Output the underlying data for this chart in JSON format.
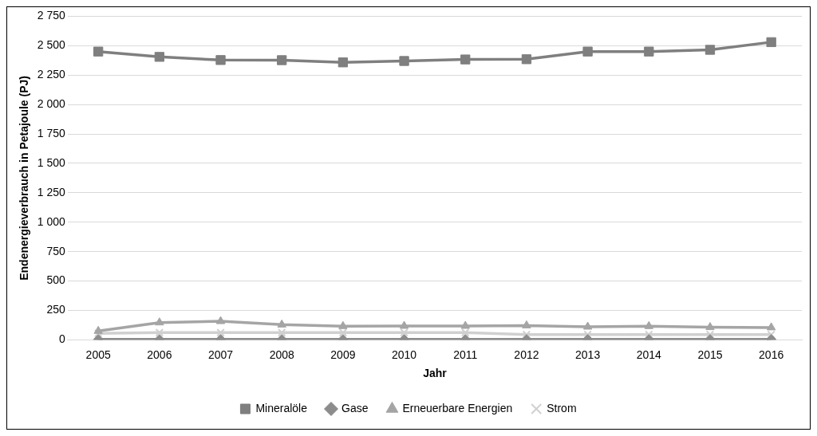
{
  "chart_data": {
    "type": "line",
    "xlabel": "Jahr",
    "ylabel": "Endenergieverbrauch in Petajoule (PJ)",
    "categories": [
      "2005",
      "2006",
      "2007",
      "2008",
      "2009",
      "2010",
      "2011",
      "2012",
      "2013",
      "2014",
      "2015",
      "2016"
    ],
    "series": [
      {
        "name": "Mineralöle",
        "color": "#7f7f7f",
        "marker": "square",
        "values": [
          2450,
          2405,
          2378,
          2377,
          2358,
          2370,
          2383,
          2385,
          2450,
          2450,
          2465,
          2530
        ]
      },
      {
        "name": "Gase",
        "color": "#8c8c8c",
        "marker": "diamond",
        "values": [
          5,
          5,
          5,
          5,
          5,
          5,
          5,
          5,
          5,
          5,
          5,
          5
        ]
      },
      {
        "name": "Erneuerbare Energien",
        "color": "#a5a5a5",
        "marker": "triangle",
        "values": [
          75,
          147,
          158,
          129,
          116,
          118,
          118,
          122,
          111,
          116,
          107,
          105
        ]
      },
      {
        "name": "Strom",
        "color": "#d0d0d0",
        "marker": "cross",
        "values": [
          55,
          62,
          62,
          62,
          62,
          62,
          62,
          45,
          45,
          45,
          45,
          45
        ]
      }
    ],
    "ylim": [
      0,
      2750
    ],
    "yticks": [
      {
        "value": 0,
        "label": "0"
      },
      {
        "value": 250,
        "label": "250"
      },
      {
        "value": 500,
        "label": "500"
      },
      {
        "value": 750,
        "label": "750"
      },
      {
        "value": 1000,
        "label": "1 000"
      },
      {
        "value": 1250,
        "label": "1 250"
      },
      {
        "value": 1500,
        "label": "1 500"
      },
      {
        "value": 1750,
        "label": "1 750"
      },
      {
        "value": 2000,
        "label": "2 000"
      },
      {
        "value": 2250,
        "label": "2 250"
      },
      {
        "value": 2500,
        "label": "2 500"
      },
      {
        "value": 2750,
        "label": "2 750"
      }
    ],
    "grid": "y",
    "legend": "bottom",
    "line_style": "solid"
  }
}
